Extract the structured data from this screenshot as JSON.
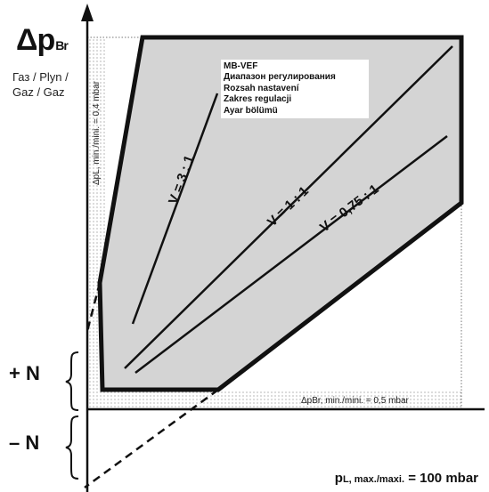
{
  "labels": {
    "delta_p_main": "Δp",
    "delta_p_sub": "Br",
    "gas_text": "Газ / Plyn / Gaz / Gaz",
    "plus_n": "+ N",
    "minus_n": "– N",
    "pl_axis_main": "p",
    "pl_axis_sub": "L, max./maxi.",
    "pl_axis_value": " = 100 mbar",
    "left_dotted_label": "ΔpL, min./mini. = 0,4 mbar",
    "bottom_dotted_label": "ΔpBr, min./mini. = 0,5 mbar"
  },
  "legend": {
    "lines": [
      "MB-VEF",
      "Диапазон регулирования",
      "Rozsah nastavení",
      "Zakres regulacji",
      "Ayar bölümü"
    ]
  },
  "ratio_lines": [
    {
      "label": "V = 3 : 1"
    },
    {
      "label": "V = 1 : 1"
    },
    {
      "label": "V = 0,75 : 1"
    }
  ],
  "colors": {
    "region_fill": "#d4d4d4",
    "ink": "#111111"
  }
}
